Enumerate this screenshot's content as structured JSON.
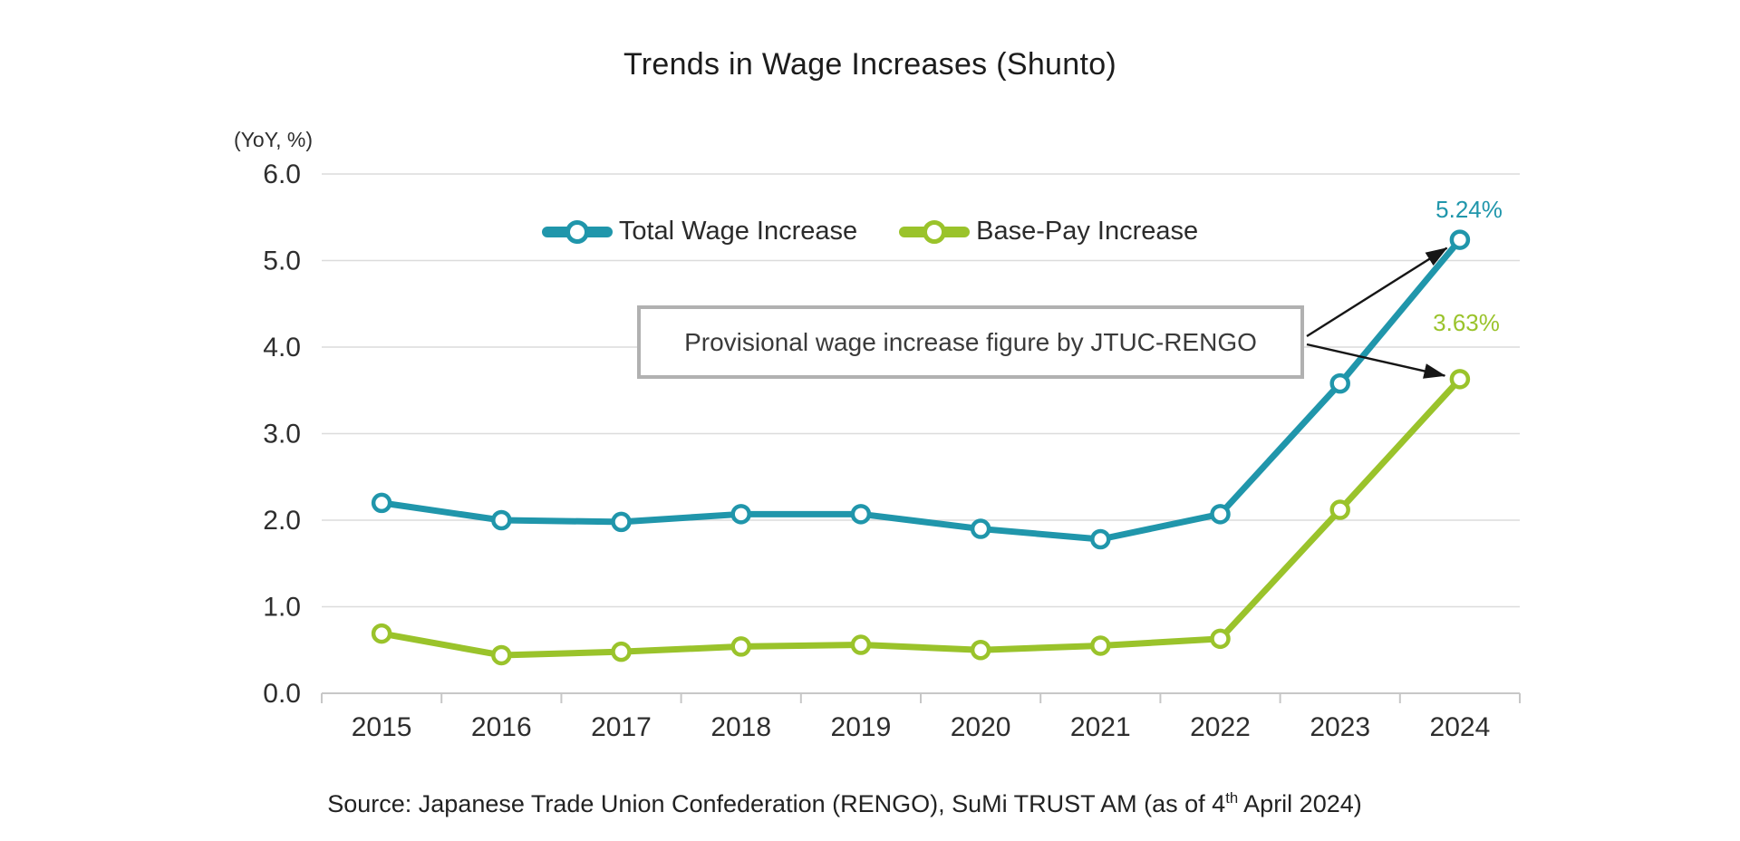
{
  "chart": {
    "title": "Trends in Wage Increases (Shunto)",
    "y_axis_unit": "(YoY, %)",
    "annotation": "Provisional wage increase figure by JTUC-RENGO",
    "end_labels": [
      {
        "series": "Total Wage Increase",
        "text": "5.24%"
      },
      {
        "series": "Base-Pay Increase",
        "text": "3.63%"
      }
    ],
    "source": {
      "text_before_sup": "Source: Japanese Trade Union Confederation (RENGO), SuMi TRUST AM (as of 4",
      "sup": "th",
      "text_after_sup": " April 2024)"
    }
  },
  "chart_data": {
    "type": "line",
    "title": "Trends in Wage Increases (Shunto)",
    "categories": [
      "2015",
      "2016",
      "2017",
      "2018",
      "2019",
      "2020",
      "2021",
      "2022",
      "2023",
      "2024"
    ],
    "series": [
      {
        "name": "Total Wage Increase",
        "color": "#2096ab",
        "values": [
          2.2,
          2.0,
          1.98,
          2.07,
          2.07,
          1.9,
          1.78,
          2.07,
          3.58,
          5.24
        ]
      },
      {
        "name": "Base-Pay Increase",
        "color": "#9ac32b",
        "values": [
          0.69,
          0.44,
          0.48,
          0.54,
          0.56,
          0.5,
          0.55,
          0.63,
          2.12,
          3.63
        ]
      }
    ],
    "ylabel": "(YoY, %)",
    "ylim": [
      0,
      6
    ],
    "ytick_step": 1.0,
    "ytick_format": "one-decimal",
    "grid": true,
    "legend_position": "top-center-inside",
    "data_labels": [
      {
        "series": "Total Wage Increase",
        "category": "2024",
        "text": "5.24%"
      },
      {
        "series": "Base-Pay Increase",
        "category": "2024",
        "text": "3.63%"
      }
    ],
    "annotations": [
      {
        "text": "Provisional wage increase figure by JTUC-RENGO",
        "points_to": [
          "Total Wage Increase 2024",
          "Base-Pay Increase 2024"
        ]
      }
    ]
  }
}
